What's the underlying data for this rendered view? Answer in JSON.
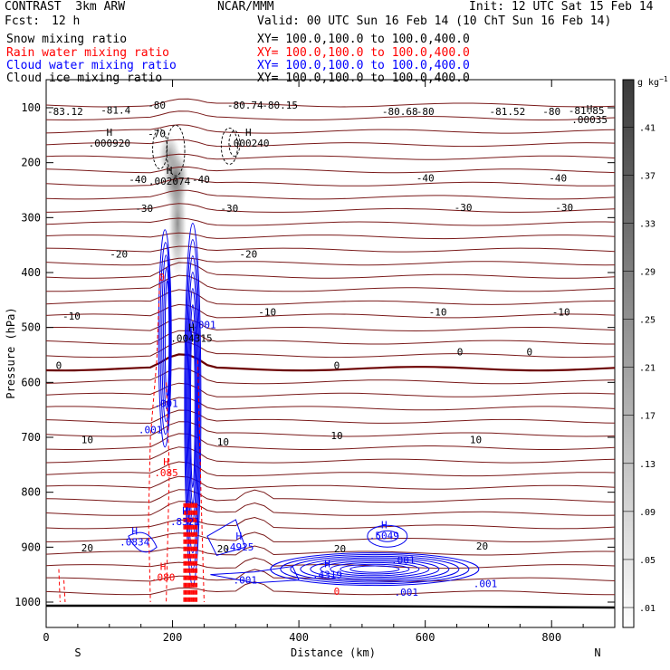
{
  "header": {
    "model": "CONTRAST  3km ARW",
    "center": "NCAR/MMM",
    "init": "Init: 12 UTC Sat 15 Feb 14",
    "fcst_label": "Fcst:",
    "fcst_value": "12 h",
    "valid": "Valid: 00 UTC Sun 16 Feb 14 (10 ChT Sun 16 Feb 14)"
  },
  "legend": [
    {
      "label": "Snow mixing ratio",
      "xy": "XY= 100.0,100.0 to 100.0,400.0",
      "color": "#000000"
    },
    {
      "label": "Rain water mixing ratio",
      "xy": "XY= 100.0,100.0 to 100.0,400.0",
      "color": "#ff0000"
    },
    {
      "label": "Cloud water mixing ratio",
      "xy": "XY= 100.0,100.0 to 100.0,400.0",
      "color": "#0000ff"
    },
    {
      "label": "Cloud ice mixing ratio",
      "xy": "XY= 100.0,100.0 to 100.0,400.0",
      "color": "#000000"
    }
  ],
  "chart_data": {
    "type": "contour",
    "xlabel": "Distance (km)",
    "ylabel": "Pressure (hPa)",
    "x_ticks": [
      0,
      200,
      400,
      600,
      800
    ],
    "xlim": [
      0,
      900
    ],
    "y_ticks": [
      100,
      200,
      300,
      400,
      500,
      600,
      700,
      800,
      900,
      1000
    ],
    "ylim": [
      1050,
      50
    ],
    "x_endpoints": {
      "left": "S",
      "right": "N"
    },
    "colorbar": {
      "unit_label": "g kg",
      "unit_exp": "−1",
      "ticks": [
        ".01",
        ".05",
        ".09",
        ".13",
        ".17",
        ".21",
        ".25",
        ".29",
        ".33",
        ".37",
        ".41"
      ]
    },
    "temperature_contour_labels": [
      {
        "text": "-80",
        "x": 175,
        "p": 95
      },
      {
        "text": "-81.4",
        "x": 110,
        "p": 104
      },
      {
        "text": "-80.74",
        "x": 315,
        "p": 95
      },
      {
        "text": "-80.15",
        "x": 370,
        "p": 95
      },
      {
        "text": "-80.68",
        "x": 560,
        "p": 107
      },
      {
        "text": "-80",
        "x": 600,
        "p": 107
      },
      {
        "text": "-81.52",
        "x": 730,
        "p": 107
      },
      {
        "text": "-80",
        "x": 800,
        "p": 107
      },
      {
        "text": "-83.12",
        "x": 30,
        "p": 107
      },
      {
        "text": "-81.85",
        "x": 855,
        "p": 105
      },
      {
        "text": "-70",
        "x": 175,
        "p": 147
      },
      {
        "text": "-40",
        "x": 145,
        "p": 230
      },
      {
        "text": "-40",
        "x": 245,
        "p": 230
      },
      {
        "text": "-40",
        "x": 600,
        "p": 228
      },
      {
        "text": "-40",
        "x": 810,
        "p": 228
      },
      {
        "text": "-30",
        "x": 155,
        "p": 283
      },
      {
        "text": "-30",
        "x": 290,
        "p": 283
      },
      {
        "text": "-30",
        "x": 660,
        "p": 281
      },
      {
        "text": "-30",
        "x": 820,
        "p": 281
      },
      {
        "text": "-20",
        "x": 115,
        "p": 366
      },
      {
        "text": "-20",
        "x": 320,
        "p": 366
      },
      {
        "text": "-10",
        "x": 40,
        "p": 479
      },
      {
        "text": "-10",
        "x": 350,
        "p": 472
      },
      {
        "text": "-10",
        "x": 620,
        "p": 472
      },
      {
        "text": "-10",
        "x": 815,
        "p": 472
      },
      {
        "text": "0",
        "x": 20,
        "p": 569
      },
      {
        "text": "0",
        "x": 460,
        "p": 569
      },
      {
        "text": "0",
        "x": 655,
        "p": 544
      },
      {
        "text": "0",
        "x": 765,
        "p": 544
      },
      {
        "text": "10",
        "x": 65,
        "p": 704
      },
      {
        "text": "10",
        "x": 280,
        "p": 708
      },
      {
        "text": "10",
        "x": 460,
        "p": 697
      },
      {
        "text": "10",
        "x": 680,
        "p": 704
      },
      {
        "text": "20",
        "x": 65,
        "p": 901
      },
      {
        "text": "20",
        "x": 280,
        "p": 903
      },
      {
        "text": "20",
        "x": 465,
        "p": 903
      },
      {
        "text": "20",
        "x": 690,
        "p": 898
      }
    ],
    "max_labels": [
      {
        "mark": "H",
        "value": ".000920",
        "x": 100,
        "p": 158,
        "color": "#000000"
      },
      {
        "mark": "H",
        "value": ".000240",
        "x": 320,
        "p": 158,
        "color": "#000000"
      },
      {
        "mark": "H",
        "value": ".002074",
        "x": 195,
        "p": 227,
        "color": "#000000"
      },
      {
        "mark": "H",
        "value": ".004315",
        "x": 230,
        "p": 513,
        "color": "#000000"
      },
      {
        "mark": "H",
        "value": ".00035",
        "x": 860,
        "p": 115,
        "color": "#000000"
      },
      {
        "mark": "H",
        "value": ".0834",
        "x": 140,
        "p": 884,
        "color": "#0000ff"
      },
      {
        "mark": "H",
        "value": ".8321",
        "x": 220,
        "p": 847,
        "color": "#0000ff"
      },
      {
        "mark": "H",
        "value": ".4925",
        "x": 305,
        "p": 893,
        "color": "#0000ff"
      },
      {
        "mark": "H",
        "value": ".5049",
        "x": 535,
        "p": 872,
        "color": "#0000ff"
      },
      {
        "mark": "H",
        "value": ".4319",
        "x": 445,
        "p": 943,
        "color": "#0000ff"
      },
      {
        "mark": "H",
        "value": ".085",
        "x": 190,
        "p": 758,
        "color": "#ff0000"
      },
      {
        "mark": "H",
        "value": ".080",
        "x": 185,
        "p": 948,
        "color": "#ff0000"
      }
    ],
    "cloud_water_labels": [
      {
        "text": ".001",
        "x": 250,
        "p": 495
      },
      {
        "text": ".001",
        "x": 165,
        "p": 686
      },
      {
        "text": ".001",
        "x": 190,
        "p": 638
      },
      {
        "text": ".001",
        "x": 315,
        "p": 960
      },
      {
        "text": ".001",
        "x": 565,
        "p": 923
      },
      {
        "text": ".001",
        "x": 695,
        "p": 966
      },
      {
        "text": ".001",
        "x": 570,
        "p": 982
      }
    ],
    "rain_labels": [
      {
        "text": "0",
        "x": 183,
        "p": 408
      },
      {
        "text": "0",
        "x": 460,
        "p": 980
      }
    ]
  },
  "colors": {
    "temperature": "#7a1a1a",
    "temp_zero": "#6b0000",
    "cloud_water": "#0000ee",
    "rain": "#ff0000",
    "snow": "#444444"
  }
}
